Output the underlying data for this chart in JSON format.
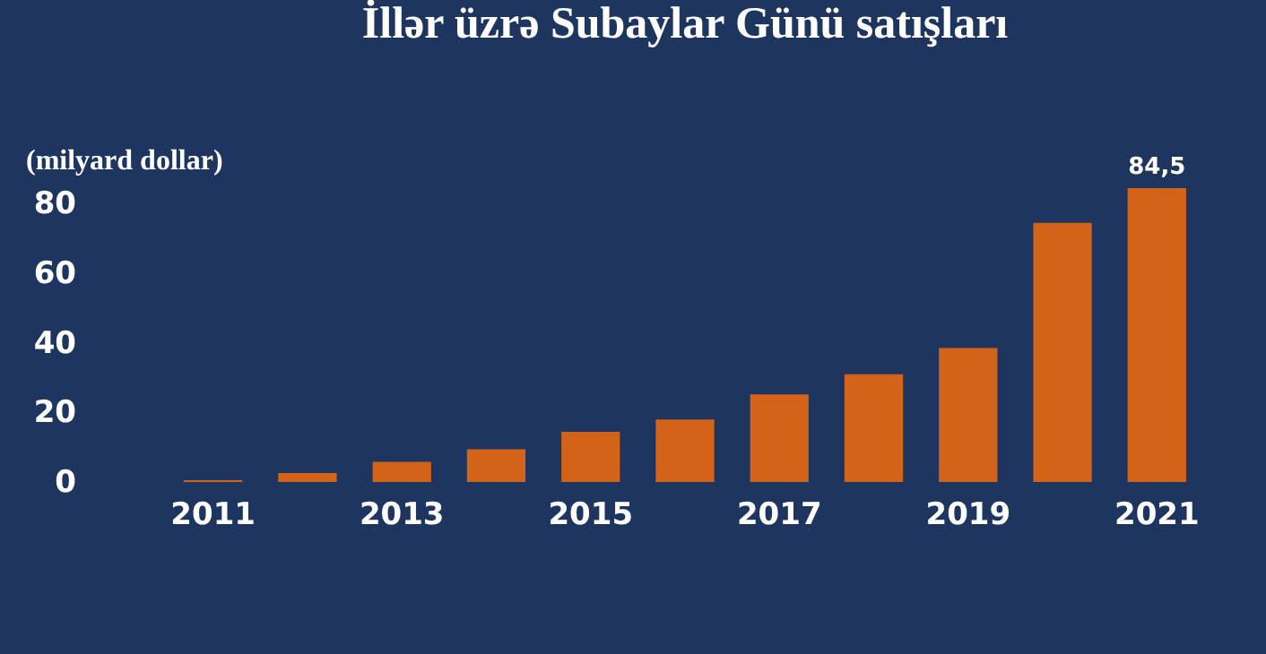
{
  "chart_data": {
    "type": "bar",
    "title": "İllər üzrə Subaylar Günü satışları",
    "ylabel": "(milyard dollar)",
    "categories": [
      "2011",
      null,
      "2013",
      null,
      "2015",
      null,
      "2017",
      null,
      "2019",
      null,
      "2021"
    ],
    "values": [
      0.5,
      2.6,
      5.8,
      9.4,
      14.4,
      18,
      25.2,
      31,
      38.5,
      74.5,
      84.5
    ],
    "value_labels": [
      null,
      null,
      null,
      null,
      null,
      null,
      null,
      null,
      null,
      null,
      "84,5"
    ],
    "color": "#d4631a",
    "ylim": [
      0,
      84.5
    ],
    "yticks": [
      0,
      20,
      40,
      60,
      80
    ],
    "grid": false
  }
}
